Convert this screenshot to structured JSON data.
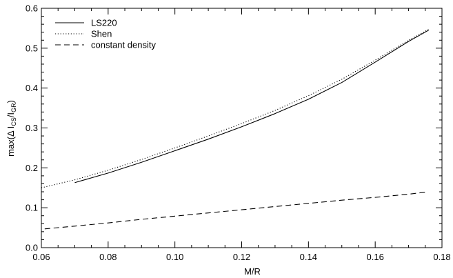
{
  "chart_data": {
    "type": "line",
    "title": "",
    "xlabel": "M/R",
    "ylabel": {
      "prefix": "max(",
      "delta": "Δ",
      "i1": "I",
      "sub1": "CS",
      "slash": "/",
      "i2": "I",
      "sub2": "GR",
      "suffix": ")"
    },
    "xlim": [
      0.06,
      0.18
    ],
    "ylim": [
      0.0,
      0.6
    ],
    "xticks": [
      "0.06",
      "0.08",
      "0.10",
      "0.12",
      "0.14",
      "0.16",
      "0.18"
    ],
    "yticks": [
      "0.0",
      "0.1",
      "0.2",
      "0.3",
      "0.4",
      "0.5",
      "0.6"
    ],
    "grid": false,
    "legend_position": "top-left",
    "series": [
      {
        "name": "LS220",
        "style": "solid",
        "x": [
          0.07,
          0.08,
          0.09,
          0.1,
          0.11,
          0.12,
          0.13,
          0.14,
          0.15,
          0.16,
          0.17,
          0.176
        ],
        "y": [
          0.163,
          0.187,
          0.214,
          0.243,
          0.272,
          0.303,
          0.336,
          0.372,
          0.414,
          0.465,
          0.517,
          0.545
        ]
      },
      {
        "name": "Shen",
        "style": "dotted",
        "x": [
          0.06,
          0.07,
          0.08,
          0.09,
          0.1,
          0.11,
          0.12,
          0.13,
          0.14,
          0.15,
          0.16,
          0.17,
          0.176
        ],
        "y": [
          0.15,
          0.17,
          0.194,
          0.221,
          0.25,
          0.28,
          0.311,
          0.344,
          0.381,
          0.422,
          0.47,
          0.52,
          0.547
        ]
      },
      {
        "name": "constant density",
        "style": "dashed",
        "x": [
          0.061,
          0.07,
          0.08,
          0.09,
          0.1,
          0.11,
          0.12,
          0.13,
          0.14,
          0.15,
          0.16,
          0.17,
          0.175
        ],
        "y": [
          0.047,
          0.054,
          0.062,
          0.071,
          0.079,
          0.087,
          0.095,
          0.103,
          0.111,
          0.119,
          0.126,
          0.134,
          0.139
        ]
      }
    ]
  }
}
